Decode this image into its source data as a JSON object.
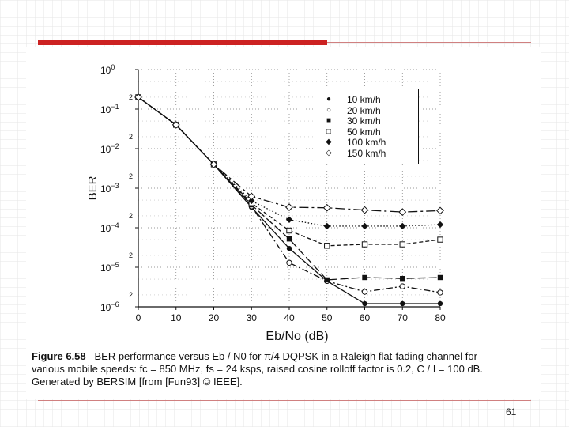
{
  "slide": {
    "page_number": "61",
    "accent_color": "#cc2222"
  },
  "caption": {
    "figure_label": "Figure 6.58",
    "text_line1": "BER performance versus Eb / N0 for π/4 DQPSK in a Raleigh flat-fading channel for",
    "text_line2": "various mobile speeds: fc = 850 MHz, fs = 24 ksps, raised cosine rolloff factor is 0.2, C / I = 100 dB.",
    "text_line3": "Generated by BERSIM [from [Fun93] © IEEE]."
  },
  "chart_data": {
    "type": "line",
    "xlabel": "Eb/No (dB)",
    "ylabel": "BER",
    "xlim": [
      0,
      80
    ],
    "ylim": [
      1e-06,
      1
    ],
    "yscale": "log",
    "grid": true,
    "legend_position": "top-right",
    "x_ticks": [
      "0",
      "10",
      "20",
      "30",
      "40",
      "50",
      "60",
      "70",
      "80"
    ],
    "y_ticks": [
      "10^0",
      "10^-1",
      "10^-2",
      "10^-3",
      "10^-4",
      "10^-5",
      "10^-6"
    ],
    "y_tick_main": [
      "10",
      "10",
      "10",
      "10",
      "10",
      "10",
      "10"
    ],
    "y_tick_exp": [
      "0",
      "−1",
      "−2",
      "−3",
      "−4",
      "−5",
      "−6"
    ],
    "series": [
      {
        "name": "10 km/h",
        "marker": "filled-circle",
        "dash": "solid",
        "x": [
          0,
          10,
          20,
          30,
          40,
          50,
          60,
          70,
          80
        ],
        "y": [
          0.2,
          0.04,
          0.004,
          0.00033,
          3e-05,
          4.5e-06,
          1.2e-06,
          1.2e-06,
          1.2e-06
        ]
      },
      {
        "name": "20 km/h",
        "marker": "open-circle",
        "dash": "dashdot",
        "x": [
          0,
          10,
          20,
          30,
          40,
          50,
          60,
          70,
          80
        ],
        "y": [
          0.2,
          0.04,
          0.004,
          0.00035,
          1.3e-05,
          4.5e-06,
          2.4e-06,
          3.3e-06,
          2.3e-06
        ]
      },
      {
        "name": "30 km/h",
        "marker": "filled-square",
        "dash": "longdash",
        "x": [
          0,
          10,
          20,
          30,
          40,
          50,
          60,
          70,
          80
        ],
        "y": [
          0.2,
          0.04,
          0.004,
          0.00038,
          5.2e-05,
          4.8e-06,
          5.5e-06,
          5.2e-06,
          5.5e-06
        ]
      },
      {
        "name": "50 km/h",
        "marker": "open-square",
        "dash": "dash",
        "x": [
          0,
          10,
          20,
          30,
          40,
          50,
          60,
          70,
          80
        ],
        "y": [
          0.2,
          0.04,
          0.004,
          0.00042,
          8.5e-05,
          3.5e-05,
          3.8e-05,
          3.8e-05,
          5e-05
        ]
      },
      {
        "name": "100 km/h",
        "marker": "filled-diamond",
        "dash": "dotted",
        "x": [
          0,
          10,
          20,
          30,
          40,
          50,
          60,
          70,
          80
        ],
        "y": [
          0.2,
          0.04,
          0.004,
          0.00048,
          0.00016,
          0.00011,
          0.00011,
          0.00011,
          0.00012
        ]
      },
      {
        "name": "150 km/h",
        "marker": "open-diamond",
        "dash": "longdashdot",
        "x": [
          0,
          10,
          20,
          30,
          40,
          50,
          60,
          70,
          80
        ],
        "y": [
          0.2,
          0.04,
          0.004,
          0.00062,
          0.00033,
          0.00032,
          0.00028,
          0.00025,
          0.00027
        ]
      }
    ]
  }
}
